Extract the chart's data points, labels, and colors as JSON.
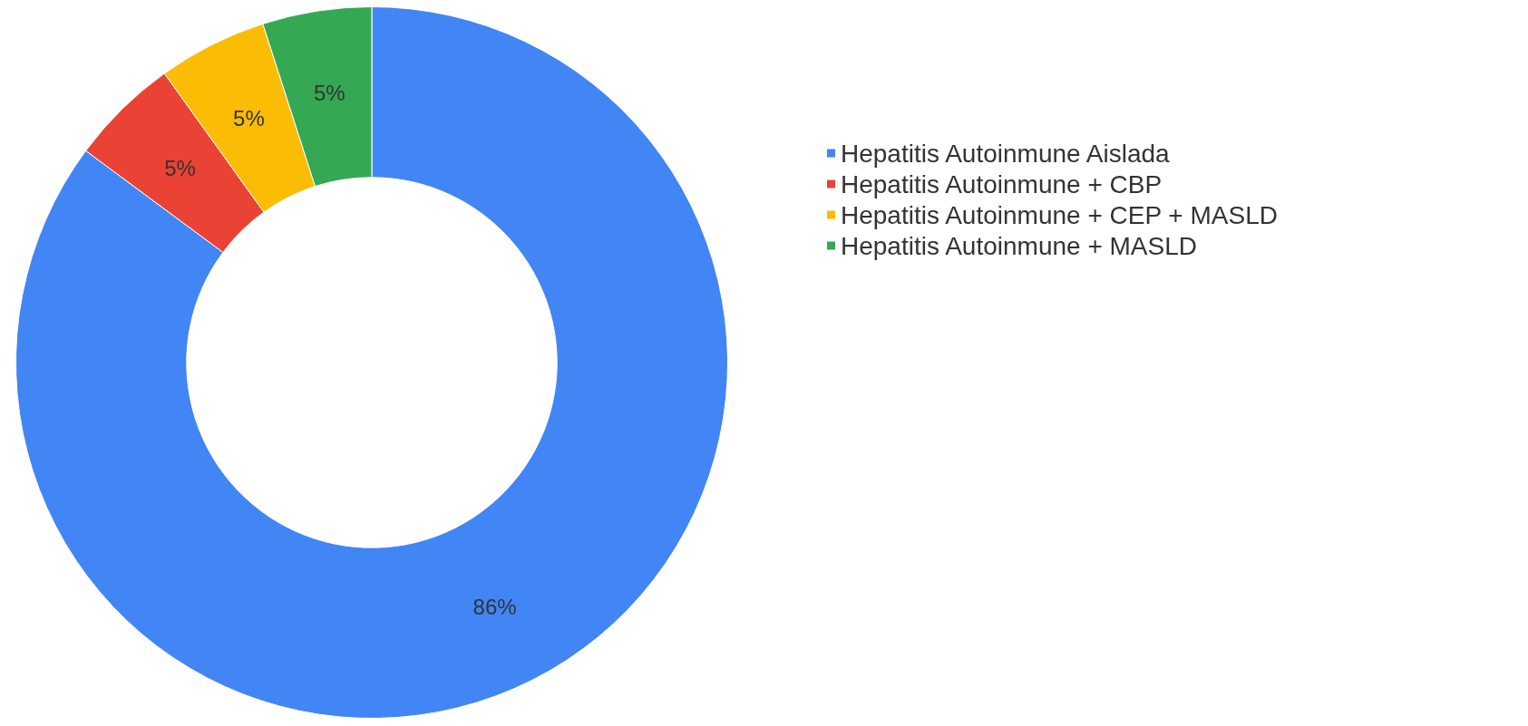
{
  "chart_data": {
    "type": "donut",
    "categories": [
      "Hepatitis Autoinmune Aislada",
      "Hepatitis Autoinmune + CBP",
      "Hepatitis Autoinmune + CEP + MASLD",
      "Hepatitis Autoinmune + MASLD"
    ],
    "values": [
      86,
      5,
      5,
      5
    ],
    "value_labels": [
      "86%",
      "5%",
      "5%",
      "5%"
    ],
    "colors": [
      "#4285f4",
      "#ea4335",
      "#fbbc04",
      "#34a853"
    ],
    "legend": "right"
  }
}
